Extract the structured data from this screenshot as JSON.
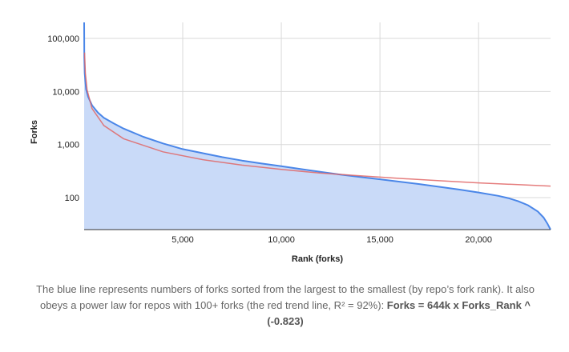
{
  "chart_data": {
    "type": "area",
    "xlabel": "Rank (forks)",
    "ylabel": "Forks",
    "y_scale": "log",
    "xlim": [
      1,
      23650
    ],
    "ylim": [
      25,
      200000
    ],
    "x_ticks": [
      5000,
      10000,
      15000,
      20000
    ],
    "x_tick_labels": [
      "5,000",
      "10,000",
      "15,000",
      "20,000"
    ],
    "y_ticks": [
      100,
      1000,
      10000,
      100000
    ],
    "y_tick_labels": [
      "100",
      "1,000",
      "10,000",
      "100,000"
    ],
    "grid": true,
    "series": [
      {
        "role": "observed forks (sorted)",
        "color": "#4a86e8",
        "fill": "#c9daf8",
        "x": [
          1,
          10,
          30,
          100,
          200,
          400,
          700,
          1000,
          1500,
          2000,
          3000,
          4000,
          5000,
          6000,
          7000,
          8000,
          9000,
          10000,
          11000,
          12000,
          13000,
          14000,
          15000,
          16000,
          17000,
          18000,
          19000,
          20000,
          21000,
          21500,
          22000,
          22500,
          23000,
          23300,
          23500,
          23650
        ],
        "y": [
          200000,
          45000,
          22000,
          11000,
          8000,
          5500,
          4000,
          3200,
          2500,
          2000,
          1400,
          1050,
          820,
          690,
          580,
          500,
          440,
          390,
          345,
          305,
          272,
          245,
          222,
          200,
          180,
          160,
          142,
          125,
          108,
          98,
          86,
          72,
          55,
          42,
          32,
          25
        ]
      },
      {
        "role": "power-law trend line",
        "color": "#e06666",
        "x": [
          20,
          60,
          150,
          400,
          1000,
          2000,
          4000,
          6000,
          8000,
          10000,
          12000,
          14000,
          16000,
          18000,
          20000,
          22000,
          23650
        ],
        "y": [
          54000,
          22200,
          10700,
          4800,
          2280,
          1290,
          730,
          520,
          410,
          340,
          290,
          258,
          230,
          208,
          190,
          176,
          165
        ]
      }
    ]
  },
  "caption": {
    "text": "The blue line represents numbers of forks sorted from the largest to the smallest (by repo’s fork rank). It also obeys a power law for repos with 100+ forks (the red trend line, R² = 92%): ",
    "formula": "Forks = 644k x Forks_Rank ^ (-0.823)"
  }
}
